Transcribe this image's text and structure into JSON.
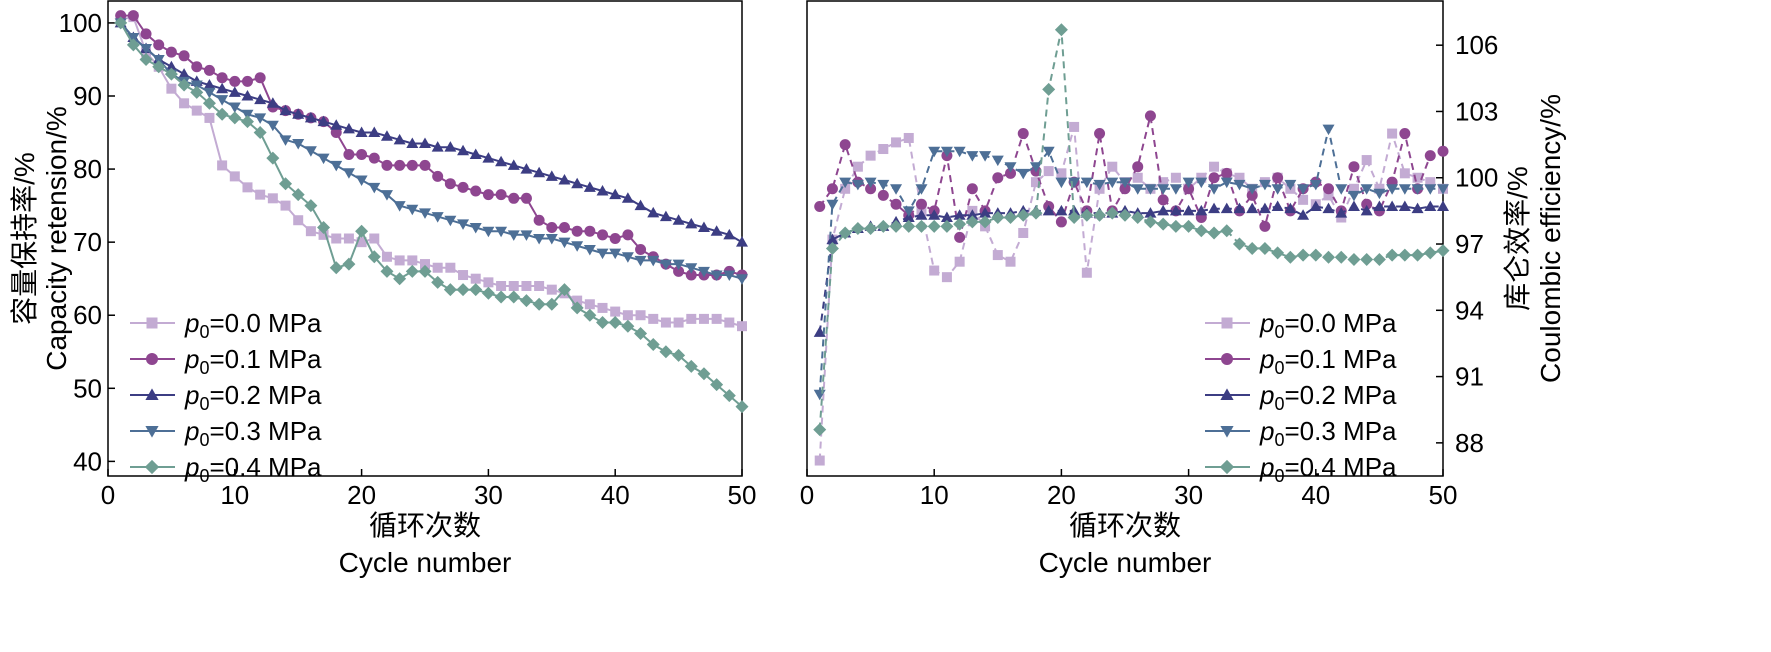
{
  "colors": {
    "p00": "#c3abd3",
    "p01": "#8e4690",
    "p02": "#3c3d83",
    "p03": "#4d6f96",
    "p04": "#6f9e93",
    "axis": "#000000"
  },
  "legend": {
    "p_symbol": "p",
    "subscript": "0",
    "items": [
      "=0.0 MPa",
      "=0.1 MPa",
      "=0.2 MPa",
      "=0.3 MPa",
      "=0.4 MPa"
    ]
  },
  "chart_data": [
    {
      "type": "line",
      "panel": "left",
      "xlabel_cn": "循环次数",
      "xlabel": "Cycle number",
      "ylabel_cn": "容量保持率/%",
      "ylabel": "Capacity retension/%",
      "xlim": [
        0,
        50
      ],
      "ylim": [
        38,
        103
      ],
      "xticks": [
        "0",
        "10",
        "20",
        "30",
        "40",
        "50"
      ],
      "yticks": [
        "40",
        "50",
        "60",
        "70",
        "80",
        "90",
        "100"
      ],
      "legend_position": "bottom-left",
      "series": [
        {
          "name": "p0=0.0 MPa",
          "marker": "square",
          "x": [
            1,
            2,
            3,
            4,
            5,
            6,
            7,
            8,
            9,
            10,
            11,
            12,
            13,
            14,
            15,
            16,
            17,
            18,
            19,
            20,
            21,
            22,
            23,
            24,
            25,
            26,
            27,
            28,
            29,
            30,
            31,
            32,
            33,
            34,
            35,
            36,
            37,
            38,
            39,
            40,
            41,
            42,
            43,
            44,
            45,
            46,
            47,
            48,
            49,
            50
          ],
          "values": [
            100.5,
            100.8,
            96,
            94,
            91,
            89,
            88,
            87,
            80.5,
            79,
            77.5,
            76.5,
            76,
            75,
            73,
            71.5,
            71,
            70.5,
            70.5,
            70,
            70.5,
            68,
            67.5,
            67.5,
            67,
            66.5,
            66.5,
            65.5,
            65,
            64.5,
            64,
            64,
            64,
            64,
            63.5,
            63,
            62,
            61.5,
            61,
            60.5,
            60,
            60,
            59.5,
            59,
            59,
            59.5,
            59.5,
            59.5,
            59,
            58.5
          ]
        },
        {
          "name": "p0=0.1 MPa",
          "marker": "circle",
          "x": [
            1,
            2,
            3,
            4,
            5,
            6,
            7,
            8,
            9,
            10,
            11,
            12,
            13,
            14,
            15,
            16,
            17,
            18,
            19,
            20,
            21,
            22,
            23,
            24,
            25,
            26,
            27,
            28,
            29,
            30,
            31,
            32,
            33,
            34,
            35,
            36,
            37,
            38,
            39,
            40,
            41,
            42,
            43,
            44,
            45,
            46,
            47,
            48,
            49,
            50
          ],
          "values": [
            101,
            101,
            98.5,
            97,
            96,
            95.5,
            94,
            93.5,
            92.5,
            92,
            92,
            92.5,
            88.5,
            88,
            87.5,
            87,
            86.5,
            85,
            82,
            82,
            81.5,
            80.5,
            80.5,
            80.5,
            80.5,
            79,
            78,
            77.5,
            77,
            76.5,
            76.5,
            76,
            76,
            73,
            72,
            72,
            71.5,
            71.5,
            71,
            70.5,
            71,
            69,
            68,
            67,
            66,
            65.5,
            65.5,
            65.5,
            66,
            65.5
          ]
        },
        {
          "name": "p0=0.2 MPa",
          "marker": "triangle-up",
          "x": [
            1,
            2,
            3,
            4,
            5,
            6,
            7,
            8,
            9,
            10,
            11,
            12,
            13,
            14,
            15,
            16,
            17,
            18,
            19,
            20,
            21,
            22,
            23,
            24,
            25,
            26,
            27,
            28,
            29,
            30,
            31,
            32,
            33,
            34,
            35,
            36,
            37,
            38,
            39,
            40,
            41,
            42,
            43,
            44,
            45,
            46,
            47,
            48,
            49,
            50
          ],
          "values": [
            100,
            98,
            96.5,
            95,
            94,
            93,
            92,
            91.5,
            91,
            90.5,
            90,
            89.5,
            89,
            88,
            87.5,
            87,
            86.5,
            86,
            85.5,
            85,
            85,
            84.5,
            84,
            83.5,
            83.5,
            83,
            83,
            82.5,
            82,
            81.5,
            81,
            80.5,
            80,
            79.5,
            79,
            78.5,
            78,
            77.5,
            77,
            76.5,
            76,
            75,
            74,
            73.5,
            73,
            72.5,
            72,
            71.5,
            71,
            70
          ]
        },
        {
          "name": "p0=0.3 MPa",
          "marker": "triangle-down",
          "x": [
            1,
            2,
            3,
            4,
            5,
            6,
            7,
            8,
            9,
            10,
            11,
            12,
            13,
            14,
            15,
            16,
            17,
            18,
            19,
            20,
            21,
            22,
            23,
            24,
            25,
            26,
            27,
            28,
            29,
            30,
            31,
            32,
            33,
            34,
            35,
            36,
            37,
            38,
            39,
            40,
            41,
            42,
            43,
            44,
            45,
            46,
            47,
            48,
            49,
            50
          ],
          "values": [
            100,
            98,
            96.5,
            95,
            93,
            92,
            91.5,
            90.5,
            89.5,
            88.5,
            87.5,
            87,
            86,
            84,
            83.5,
            82.5,
            81.5,
            80.5,
            79.5,
            78.5,
            77.5,
            76.5,
            75,
            74.5,
            74,
            73.5,
            73,
            72.5,
            72,
            71.5,
            71.5,
            71,
            71,
            70.5,
            70.5,
            70,
            69.5,
            69,
            68.5,
            68.5,
            68,
            67.5,
            67.5,
            67,
            67,
            66.5,
            66,
            65.5,
            65.5,
            65
          ]
        },
        {
          "name": "p0=0.4 MPa",
          "marker": "diamond",
          "x": [
            1,
            2,
            3,
            4,
            5,
            6,
            7,
            8,
            9,
            10,
            11,
            12,
            13,
            14,
            15,
            16,
            17,
            18,
            19,
            20,
            21,
            22,
            23,
            24,
            25,
            26,
            27,
            28,
            29,
            30,
            31,
            32,
            33,
            34,
            35,
            36,
            37,
            38,
            39,
            40,
            41,
            42,
            43,
            44,
            45,
            46,
            47,
            48,
            49,
            50
          ],
          "values": [
            100,
            97,
            95,
            94,
            93,
            91.5,
            90.5,
            89,
            87.5,
            87,
            86.5,
            85,
            81.5,
            78,
            76.5,
            75,
            72,
            66.5,
            67,
            71.5,
            68,
            66,
            65,
            66,
            66,
            64.5,
            63.5,
            63.5,
            63.5,
            63,
            62.5,
            62.5,
            62,
            61.5,
            61.5,
            63.5,
            61,
            60,
            59,
            59,
            58.5,
            57.5,
            56,
            55,
            54.5,
            53,
            52,
            50.5,
            49,
            47.5
          ]
        }
      ]
    },
    {
      "type": "line",
      "panel": "right",
      "xlabel_cn": "循环次数",
      "xlabel": "Cycle number",
      "ylabel_cn": "库仑效率/%",
      "ylabel": "Coulombic efficiency/%",
      "xlim": [
        0,
        50
      ],
      "ylim": [
        86.5,
        108
      ],
      "xticks": [
        "0",
        "10",
        "20",
        "30",
        "40",
        "50"
      ],
      "yticks": [
        "88",
        "91",
        "94",
        "97",
        "100",
        "103",
        "106"
      ],
      "legend_position": "bottom-right",
      "series": [
        {
          "name": "p0=0.0 MPa",
          "marker": "square",
          "x": [
            1,
            2,
            3,
            4,
            5,
            6,
            7,
            8,
            9,
            10,
            11,
            12,
            13,
            14,
            15,
            16,
            17,
            18,
            19,
            20,
            21,
            22,
            23,
            24,
            25,
            26,
            27,
            28,
            29,
            30,
            31,
            32,
            33,
            34,
            35,
            36,
            37,
            38,
            39,
            40,
            41,
            42,
            43,
            44,
            45,
            46,
            47,
            48,
            49,
            50
          ],
          "values": [
            87.2,
            97.2,
            99.5,
            100.5,
            101,
            101.3,
            101.6,
            101.8,
            98.5,
            95.8,
            95.5,
            96.2,
            98.5,
            97.8,
            96.5,
            96.2,
            97.5,
            99.8,
            100.3,
            100.2,
            102.3,
            95.7,
            99.5,
            100.5,
            99.8,
            100,
            99.5,
            99.8,
            100,
            99.5,
            100,
            100.5,
            100.2,
            100,
            99.5,
            99.8,
            100,
            99.5,
            99,
            98.8,
            99.2,
            98.2,
            99.5,
            100.8,
            99.5,
            102,
            100.2,
            100,
            99.8,
            99.5
          ]
        },
        {
          "name": "p0=0.1 MPa",
          "marker": "circle",
          "x": [
            1,
            2,
            3,
            4,
            5,
            6,
            7,
            8,
            9,
            10,
            11,
            12,
            13,
            14,
            15,
            16,
            17,
            18,
            19,
            20,
            21,
            22,
            23,
            24,
            25,
            26,
            27,
            28,
            29,
            30,
            31,
            32,
            33,
            34,
            35,
            36,
            37,
            38,
            39,
            40,
            41,
            42,
            43,
            44,
            45,
            46,
            47,
            48,
            49,
            50
          ],
          "values": [
            98.7,
            99.5,
            101.5,
            99.8,
            99.5,
            99.2,
            98.8,
            98.3,
            98.8,
            98.5,
            101,
            97.3,
            99.5,
            98.5,
            100,
            100.2,
            102,
            100.3,
            98.7,
            98,
            99.8,
            98.5,
            102,
            98.5,
            99.5,
            100.5,
            102.8,
            99,
            98.5,
            99.5,
            98.2,
            100,
            100.2,
            98.5,
            99.2,
            97.8,
            100,
            98.5,
            99.5,
            99.8,
            99.5,
            98.5,
            100.5,
            98.8,
            98.5,
            99.8,
            102,
            99.5,
            101,
            101.2
          ]
        },
        {
          "name": "p0=0.2 MPa",
          "marker": "triangle-up",
          "x": [
            1,
            2,
            3,
            4,
            5,
            6,
            7,
            8,
            9,
            10,
            11,
            12,
            13,
            14,
            15,
            16,
            17,
            18,
            19,
            20,
            21,
            22,
            23,
            24,
            25,
            26,
            27,
            28,
            29,
            30,
            31,
            32,
            33,
            34,
            35,
            36,
            37,
            38,
            39,
            40,
            41,
            42,
            43,
            44,
            45,
            46,
            47,
            48,
            49,
            50
          ],
          "values": [
            93,
            97.2,
            97.5,
            97.7,
            97.8,
            97.8,
            98,
            98.2,
            98.3,
            98.3,
            98.2,
            98.3,
            98.3,
            98.4,
            98.4,
            98.4,
            98.5,
            98.5,
            98.5,
            98.5,
            98.5,
            98.4,
            98.4,
            98.4,
            98.5,
            98.4,
            98.4,
            98.5,
            98.5,
            98.5,
            98.5,
            98.6,
            98.6,
            98.6,
            98.6,
            98.6,
            98.7,
            98.6,
            98.3,
            98.7,
            98.6,
            98.4,
            98.7,
            98.5,
            98.7,
            98.7,
            98.7,
            98.6,
            98.7,
            98.7
          ]
        },
        {
          "name": "p0=0.3 MPa",
          "marker": "triangle-down",
          "x": [
            1,
            2,
            3,
            4,
            5,
            6,
            7,
            8,
            9,
            10,
            11,
            12,
            13,
            14,
            15,
            16,
            17,
            18,
            19,
            20,
            21,
            22,
            23,
            24,
            25,
            26,
            27,
            28,
            29,
            30,
            31,
            32,
            33,
            34,
            35,
            36,
            37,
            38,
            39,
            40,
            41,
            42,
            43,
            44,
            45,
            46,
            47,
            48,
            49,
            50
          ],
          "values": [
            90.2,
            98.8,
            99.8,
            99.7,
            99.8,
            99.7,
            99.5,
            98.5,
            99.5,
            101.2,
            101.2,
            101.2,
            101,
            101,
            100.8,
            100.5,
            100.2,
            100.5,
            101.2,
            99.8,
            99.8,
            99.8,
            99.7,
            99.8,
            99.8,
            99.5,
            99.5,
            99.5,
            99.5,
            99.8,
            99.8,
            99.5,
            99.8,
            99.7,
            99.5,
            99.7,
            99.5,
            99.7,
            99.5,
            99.7,
            102.2,
            99.5,
            99.2,
            99.5,
            99.3,
            99.5,
            99.5,
            99.5,
            99.5,
            99.5
          ]
        },
        {
          "name": "p0=0.4 MPa",
          "marker": "diamond",
          "x": [
            1,
            2,
            3,
            4,
            5,
            6,
            7,
            8,
            9,
            10,
            11,
            12,
            13,
            14,
            15,
            16,
            17,
            18,
            19,
            20,
            21,
            22,
            23,
            24,
            25,
            26,
            27,
            28,
            29,
            30,
            31,
            32,
            33,
            34,
            35,
            36,
            37,
            38,
            39,
            40,
            41,
            42,
            43,
            44,
            45,
            46,
            47,
            48,
            49,
            50
          ],
          "values": [
            88.6,
            96.8,
            97.5,
            97.7,
            97.7,
            97.8,
            97.8,
            97.8,
            97.8,
            97.8,
            97.8,
            97.9,
            98,
            98,
            98.2,
            98.2,
            98.3,
            98.4,
            104,
            106.7,
            98.2,
            98.3,
            98.3,
            98.4,
            98.3,
            98.2,
            98,
            97.9,
            97.8,
            97.8,
            97.6,
            97.5,
            97.6,
            97,
            96.8,
            96.8,
            96.6,
            96.4,
            96.5,
            96.5,
            96.4,
            96.4,
            96.3,
            96.3,
            96.3,
            96.5,
            96.5,
            96.5,
            96.6,
            96.7
          ]
        }
      ]
    }
  ]
}
